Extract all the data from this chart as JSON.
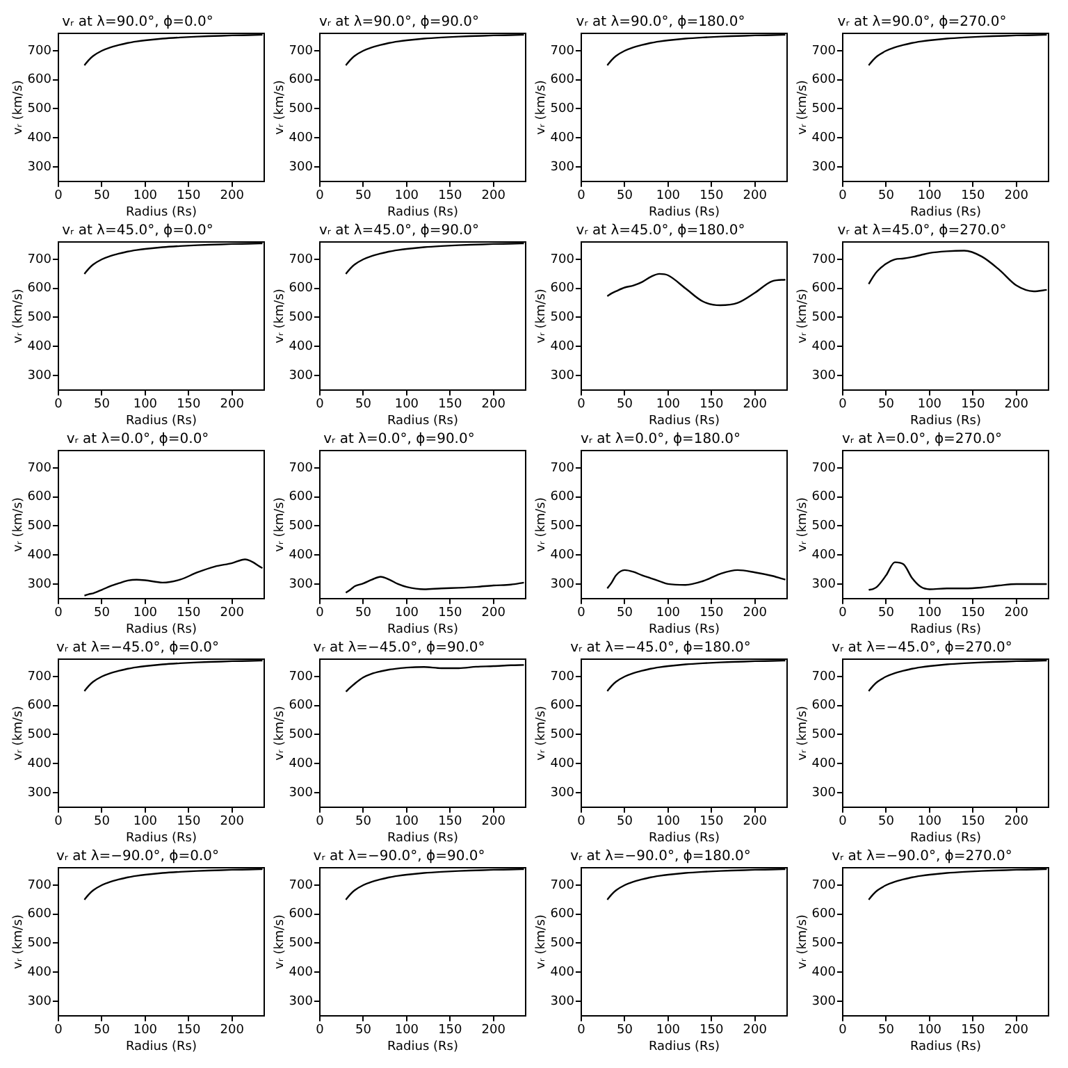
{
  "chart_data": [
    {
      "type": "line",
      "title": "vᵣ at λ=90.0°, ϕ=0.0°",
      "xlabel": "Radius (Rs)",
      "ylabel": "vᵣ (km/s)",
      "color": "#000000",
      "x": [
        30,
        35,
        40,
        50,
        60,
        70,
        80,
        90,
        100,
        120,
        140,
        160,
        180,
        200,
        220,
        235
      ],
      "values": [
        650,
        668,
        682,
        700,
        712,
        720,
        727,
        732,
        736,
        742,
        746,
        749,
        751,
        753,
        754,
        755
      ],
      "xlim": [
        0,
        237
      ],
      "ylim": [
        250,
        760
      ],
      "xticks": [
        0,
        50,
        100,
        150,
        200
      ],
      "yticks": [
        300,
        400,
        500,
        600,
        700
      ]
    },
    {
      "type": "line",
      "title": "vᵣ at λ=90.0°, ϕ=90.0°",
      "xlabel": "Radius (Rs)",
      "ylabel": "vᵣ (km/s)",
      "color": "#000000",
      "x": [
        30,
        35,
        40,
        50,
        60,
        70,
        80,
        90,
        100,
        120,
        140,
        160,
        180,
        200,
        220,
        235
      ],
      "values": [
        650,
        668,
        682,
        700,
        712,
        720,
        727,
        732,
        736,
        742,
        746,
        749,
        751,
        753,
        754,
        755
      ],
      "xlim": [
        0,
        237
      ],
      "ylim": [
        250,
        760
      ],
      "xticks": [
        0,
        50,
        100,
        150,
        200
      ],
      "yticks": [
        300,
        400,
        500,
        600,
        700
      ]
    },
    {
      "type": "line",
      "title": "vᵣ at λ=90.0°, ϕ=180.0°",
      "xlabel": "Radius (Rs)",
      "ylabel": "vᵣ (km/s)",
      "color": "#000000",
      "x": [
        30,
        35,
        40,
        50,
        60,
        70,
        80,
        90,
        100,
        120,
        140,
        160,
        180,
        200,
        220,
        235
      ],
      "values": [
        650,
        668,
        682,
        700,
        712,
        720,
        727,
        732,
        736,
        742,
        746,
        749,
        751,
        753,
        754,
        755
      ],
      "xlim": [
        0,
        237
      ],
      "ylim": [
        250,
        760
      ],
      "xticks": [
        0,
        50,
        100,
        150,
        200
      ],
      "yticks": [
        300,
        400,
        500,
        600,
        700
      ]
    },
    {
      "type": "line",
      "title": "vᵣ at λ=90.0°, ϕ=270.0°",
      "xlabel": "Radius (Rs)",
      "ylabel": "vᵣ (km/s)",
      "color": "#000000",
      "x": [
        30,
        35,
        40,
        50,
        60,
        70,
        80,
        90,
        100,
        120,
        140,
        160,
        180,
        200,
        220,
        235
      ],
      "values": [
        650,
        668,
        682,
        700,
        712,
        720,
        727,
        732,
        736,
        742,
        746,
        749,
        751,
        753,
        754,
        755
      ],
      "xlim": [
        0,
        237
      ],
      "ylim": [
        250,
        760
      ],
      "xticks": [
        0,
        50,
        100,
        150,
        200
      ],
      "yticks": [
        300,
        400,
        500,
        600,
        700
      ]
    },
    {
      "type": "line",
      "title": "vᵣ at λ=45.0°, ϕ=0.0°",
      "xlabel": "Radius (Rs)",
      "ylabel": "vᵣ (km/s)",
      "color": "#000000",
      "x": [
        30,
        35,
        40,
        50,
        60,
        70,
        80,
        90,
        100,
        120,
        140,
        160,
        180,
        200,
        220,
        235
      ],
      "values": [
        650,
        668,
        682,
        700,
        712,
        720,
        727,
        732,
        736,
        742,
        746,
        749,
        751,
        753,
        754,
        755
      ],
      "xlim": [
        0,
        237
      ],
      "ylim": [
        250,
        760
      ],
      "xticks": [
        0,
        50,
        100,
        150,
        200
      ],
      "yticks": [
        300,
        400,
        500,
        600,
        700
      ]
    },
    {
      "type": "line",
      "title": "vᵣ at λ=45.0°, ϕ=90.0°",
      "xlabel": "Radius (Rs)",
      "ylabel": "vᵣ (km/s)",
      "color": "#000000",
      "x": [
        30,
        35,
        40,
        50,
        60,
        70,
        80,
        90,
        100,
        120,
        140,
        160,
        180,
        200,
        220,
        235
      ],
      "values": [
        650,
        668,
        682,
        700,
        712,
        720,
        727,
        732,
        736,
        742,
        746,
        749,
        751,
        753,
        754,
        755
      ],
      "xlim": [
        0,
        237
      ],
      "ylim": [
        250,
        760
      ],
      "xticks": [
        0,
        50,
        100,
        150,
        200
      ],
      "yticks": [
        300,
        400,
        500,
        600,
        700
      ]
    },
    {
      "type": "line",
      "title": "vᵣ at λ=45.0°, ϕ=180.0°",
      "xlabel": "Radius (Rs)",
      "ylabel": "vᵣ (km/s)",
      "color": "#000000",
      "x": [
        30,
        35,
        40,
        50,
        60,
        70,
        80,
        90,
        100,
        120,
        140,
        160,
        180,
        200,
        220,
        235
      ],
      "values": [
        573,
        583,
        590,
        603,
        610,
        622,
        640,
        650,
        645,
        600,
        555,
        542,
        550,
        585,
        625,
        630
      ],
      "xlim": [
        0,
        237
      ],
      "ylim": [
        250,
        760
      ],
      "xticks": [
        0,
        50,
        100,
        150,
        200
      ],
      "yticks": [
        300,
        400,
        500,
        600,
        700
      ]
    },
    {
      "type": "line",
      "title": "vᵣ at λ=45.0°, ϕ=270.0°",
      "xlabel": "Radius (Rs)",
      "ylabel": "vᵣ (km/s)",
      "color": "#000000",
      "x": [
        30,
        35,
        40,
        50,
        60,
        70,
        80,
        90,
        100,
        120,
        140,
        160,
        180,
        200,
        220,
        235
      ],
      "values": [
        615,
        640,
        660,
        685,
        700,
        703,
        708,
        715,
        722,
        728,
        730,
        710,
        665,
        610,
        590,
        595
      ],
      "xlim": [
        0,
        237
      ],
      "ylim": [
        250,
        760
      ],
      "xticks": [
        0,
        50,
        100,
        150,
        200
      ],
      "yticks": [
        300,
        400,
        500,
        600,
        700
      ]
    },
    {
      "type": "line",
      "title": "vᵣ at λ=0.0°, ϕ=0.0°",
      "xlabel": "Radius (Rs)",
      "ylabel": "vᵣ (km/s)",
      "color": "#000000",
      "x": [
        30,
        35,
        40,
        50,
        60,
        70,
        80,
        90,
        100,
        120,
        140,
        160,
        180,
        200,
        215,
        235
      ],
      "values": [
        260,
        265,
        268,
        280,
        293,
        303,
        312,
        315,
        313,
        305,
        315,
        340,
        360,
        372,
        385,
        355
      ],
      "xlim": [
        0,
        237
      ],
      "ylim": [
        250,
        760
      ],
      "xticks": [
        0,
        50,
        100,
        150,
        200
      ],
      "yticks": [
        300,
        400,
        500,
        600,
        700
      ]
    },
    {
      "type": "line",
      "title": "vᵣ at λ=0.0°, ϕ=90.0°",
      "xlabel": "Radius (Rs)",
      "ylabel": "vᵣ (km/s)",
      "color": "#000000",
      "x": [
        30,
        35,
        40,
        50,
        60,
        70,
        80,
        90,
        100,
        120,
        140,
        160,
        180,
        200,
        220,
        235
      ],
      "values": [
        270,
        280,
        292,
        302,
        315,
        325,
        315,
        300,
        290,
        282,
        285,
        287,
        290,
        295,
        298,
        305
      ],
      "xlim": [
        0,
        237
      ],
      "ylim": [
        250,
        760
      ],
      "xticks": [
        0,
        50,
        100,
        150,
        200
      ],
      "yticks": [
        300,
        400,
        500,
        600,
        700
      ]
    },
    {
      "type": "line",
      "title": "vᵣ at λ=0.0°, ϕ=180.0°",
      "xlabel": "Radius (Rs)",
      "ylabel": "vᵣ (km/s)",
      "color": "#000000",
      "x": [
        30,
        35,
        40,
        50,
        60,
        70,
        80,
        90,
        100,
        120,
        140,
        160,
        180,
        200,
        220,
        235
      ],
      "values": [
        285,
        305,
        330,
        348,
        342,
        330,
        320,
        310,
        300,
        297,
        310,
        335,
        348,
        340,
        328,
        315
      ],
      "xlim": [
        0,
        237
      ],
      "ylim": [
        250,
        760
      ],
      "xticks": [
        0,
        50,
        100,
        150,
        200
      ],
      "yticks": [
        300,
        400,
        500,
        600,
        700
      ]
    },
    {
      "type": "line",
      "title": "vᵣ at λ=0.0°, ϕ=270.0°",
      "xlabel": "Radius (Rs)",
      "ylabel": "vᵣ (km/s)",
      "color": "#000000",
      "x": [
        30,
        35,
        40,
        50,
        60,
        70,
        80,
        90,
        100,
        120,
        140,
        160,
        180,
        200,
        220,
        235
      ],
      "values": [
        280,
        283,
        292,
        330,
        375,
        368,
        320,
        290,
        282,
        285,
        285,
        288,
        295,
        300,
        300,
        300
      ],
      "xlim": [
        0,
        237
      ],
      "ylim": [
        250,
        760
      ],
      "xticks": [
        0,
        50,
        100,
        150,
        200
      ],
      "yticks": [
        300,
        400,
        500,
        600,
        700
      ]
    },
    {
      "type": "line",
      "title": "vᵣ at λ=−45.0°, ϕ=0.0°",
      "xlabel": "Radius (Rs)",
      "ylabel": "vᵣ (km/s)",
      "color": "#000000",
      "x": [
        30,
        35,
        40,
        50,
        60,
        70,
        80,
        90,
        100,
        120,
        140,
        160,
        180,
        200,
        220,
        235
      ],
      "values": [
        650,
        668,
        682,
        700,
        712,
        720,
        727,
        732,
        736,
        742,
        746,
        749,
        751,
        753,
        754,
        755
      ],
      "xlim": [
        0,
        237
      ],
      "ylim": [
        250,
        760
      ],
      "xticks": [
        0,
        50,
        100,
        150,
        200
      ],
      "yticks": [
        300,
        400,
        500,
        600,
        700
      ]
    },
    {
      "type": "line",
      "title": "vᵣ at λ=−45.0°, ϕ=90.0°",
      "xlabel": "Radius (Rs)",
      "ylabel": "vᵣ (km/s)",
      "color": "#000000",
      "x": [
        30,
        35,
        40,
        50,
        60,
        70,
        80,
        90,
        100,
        120,
        140,
        160,
        180,
        200,
        220,
        235
      ],
      "values": [
        648,
        662,
        675,
        697,
        710,
        718,
        724,
        728,
        731,
        733,
        729,
        729,
        734,
        736,
        739,
        740
      ],
      "xlim": [
        0,
        237
      ],
      "ylim": [
        250,
        760
      ],
      "xticks": [
        0,
        50,
        100,
        150,
        200
      ],
      "yticks": [
        300,
        400,
        500,
        600,
        700
      ]
    },
    {
      "type": "line",
      "title": "vᵣ at λ=−45.0°, ϕ=180.0°",
      "xlabel": "Radius (Rs)",
      "ylabel": "vᵣ (km/s)",
      "color": "#000000",
      "x": [
        30,
        35,
        40,
        50,
        60,
        70,
        80,
        90,
        100,
        120,
        140,
        160,
        180,
        200,
        220,
        235
      ],
      "values": [
        650,
        668,
        682,
        700,
        712,
        720,
        727,
        732,
        736,
        742,
        746,
        749,
        751,
        753,
        754,
        755
      ],
      "xlim": [
        0,
        237
      ],
      "ylim": [
        250,
        760
      ],
      "xticks": [
        0,
        50,
        100,
        150,
        200
      ],
      "yticks": [
        300,
        400,
        500,
        600,
        700
      ]
    },
    {
      "type": "line",
      "title": "vᵣ at λ=−45.0°, ϕ=270.0°",
      "xlabel": "Radius (Rs)",
      "ylabel": "vᵣ (km/s)",
      "color": "#000000",
      "x": [
        30,
        35,
        40,
        50,
        60,
        70,
        80,
        90,
        100,
        120,
        140,
        160,
        180,
        200,
        220,
        235
      ],
      "values": [
        650,
        668,
        682,
        700,
        712,
        720,
        727,
        732,
        736,
        742,
        746,
        749,
        751,
        753,
        754,
        755
      ],
      "xlim": [
        0,
        237
      ],
      "ylim": [
        250,
        760
      ],
      "xticks": [
        0,
        50,
        100,
        150,
        200
      ],
      "yticks": [
        300,
        400,
        500,
        600,
        700
      ]
    },
    {
      "type": "line",
      "title": "vᵣ at λ=−90.0°, ϕ=0.0°",
      "xlabel": "Radius (Rs)",
      "ylabel": "vᵣ (km/s)",
      "color": "#000000",
      "x": [
        30,
        35,
        40,
        50,
        60,
        70,
        80,
        90,
        100,
        120,
        140,
        160,
        180,
        200,
        220,
        235
      ],
      "values": [
        650,
        668,
        682,
        700,
        712,
        720,
        727,
        732,
        736,
        742,
        746,
        749,
        751,
        753,
        754,
        755
      ],
      "xlim": [
        0,
        237
      ],
      "ylim": [
        250,
        760
      ],
      "xticks": [
        0,
        50,
        100,
        150,
        200
      ],
      "yticks": [
        300,
        400,
        500,
        600,
        700
      ]
    },
    {
      "type": "line",
      "title": "vᵣ at λ=−90.0°, ϕ=90.0°",
      "xlabel": "Radius (Rs)",
      "ylabel": "vᵣ (km/s)",
      "color": "#000000",
      "x": [
        30,
        35,
        40,
        50,
        60,
        70,
        80,
        90,
        100,
        120,
        140,
        160,
        180,
        200,
        220,
        235
      ],
      "values": [
        650,
        668,
        682,
        700,
        712,
        720,
        727,
        732,
        736,
        742,
        746,
        749,
        751,
        753,
        754,
        755
      ],
      "xlim": [
        0,
        237
      ],
      "ylim": [
        250,
        760
      ],
      "xticks": [
        0,
        50,
        100,
        150,
        200
      ],
      "yticks": [
        300,
        400,
        500,
        600,
        700
      ]
    },
    {
      "type": "line",
      "title": "vᵣ at λ=−90.0°, ϕ=180.0°",
      "xlabel": "Radius (Rs)",
      "ylabel": "vᵣ (km/s)",
      "color": "#000000",
      "x": [
        30,
        35,
        40,
        50,
        60,
        70,
        80,
        90,
        100,
        120,
        140,
        160,
        180,
        200,
        220,
        235
      ],
      "values": [
        650,
        668,
        682,
        700,
        712,
        720,
        727,
        732,
        736,
        742,
        746,
        749,
        751,
        753,
        754,
        755
      ],
      "xlim": [
        0,
        237
      ],
      "ylim": [
        250,
        760
      ],
      "xticks": [
        0,
        50,
        100,
        150,
        200
      ],
      "yticks": [
        300,
        400,
        500,
        600,
        700
      ]
    },
    {
      "type": "line",
      "title": "vᵣ at λ=−90.0°, ϕ=270.0°",
      "xlabel": "Radius (Rs)",
      "ylabel": "vᵣ (km/s)",
      "color": "#000000",
      "x": [
        30,
        35,
        40,
        50,
        60,
        70,
        80,
        90,
        100,
        120,
        140,
        160,
        180,
        200,
        220,
        235
      ],
      "values": [
        650,
        668,
        682,
        700,
        712,
        720,
        727,
        732,
        736,
        742,
        746,
        749,
        751,
        753,
        754,
        755
      ],
      "xlim": [
        0,
        237
      ],
      "ylim": [
        250,
        760
      ],
      "xticks": [
        0,
        50,
        100,
        150,
        200
      ],
      "yticks": [
        300,
        400,
        500,
        600,
        700
      ]
    }
  ]
}
